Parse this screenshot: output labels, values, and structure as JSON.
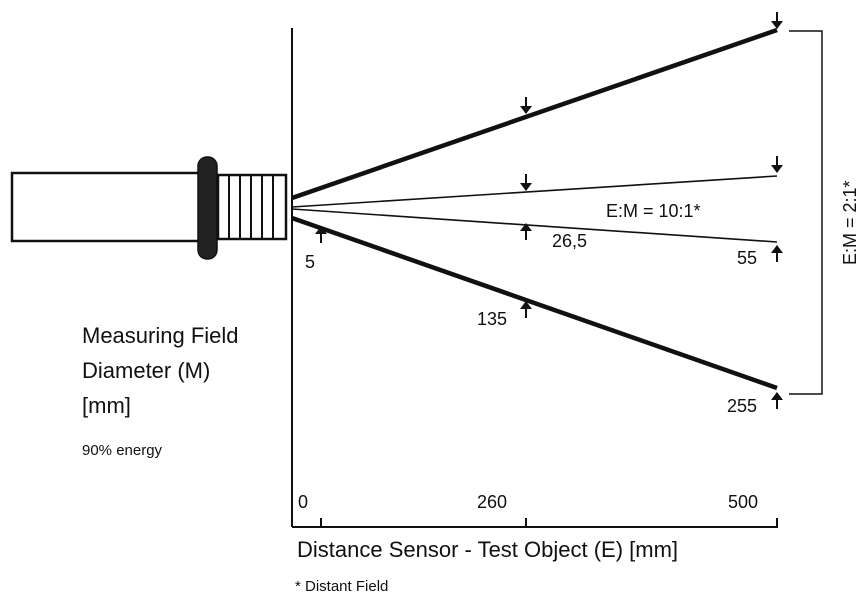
{
  "colors": {
    "ink": "#111111",
    "background": "#ffffff",
    "sensor_ring": "#222222",
    "sensor_body": "#ffffff"
  },
  "field_label": {
    "line1": "Measuring Field",
    "line2": "Diameter (M)",
    "line3": "[mm]"
  },
  "energy_note": "90% energy",
  "axis_caption": "Distance Sensor - Test Object (E) [mm]",
  "footnote": "* Distant Field",
  "distance_ticks": [
    "0",
    "260",
    "500"
  ],
  "cone_21": {
    "ratio_label": "E:M = 2:1*",
    "diameters": [
      "135",
      "255"
    ]
  },
  "cone_101": {
    "ratio_label": "E:M = 10:1*",
    "diameters": [
      "5",
      "26,5",
      "55"
    ]
  },
  "icons": {
    "sensor": "infrared-sensor-icon",
    "arrow_down": "arrow-down-icon",
    "arrow_up": "arrow-up-icon"
  }
}
